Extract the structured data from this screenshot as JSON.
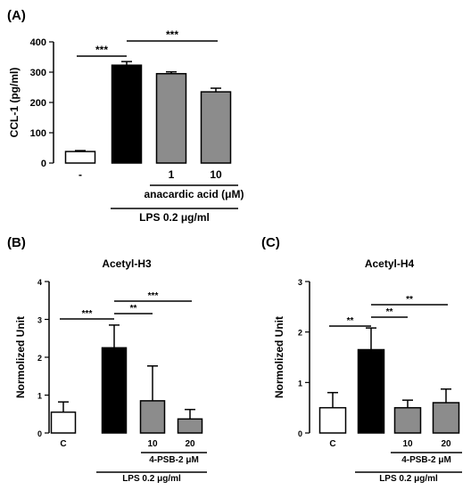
{
  "figure": {
    "panel_labels": [
      "(A)",
      "(B)",
      "(C)"
    ],
    "colors": {
      "white": "#ffffff",
      "black": "#000000",
      "gray": "#8c8c8c"
    }
  },
  "chart_data": [
    {
      "type": "bar",
      "panel": "(A)",
      "title": "",
      "ylabel": "CCL-1 (pg/ml)",
      "xlabel": "",
      "ylim": [
        0,
        400
      ],
      "yticks": [
        0,
        100,
        200,
        300,
        400
      ],
      "categories": [
        "-",
        "",
        "1",
        "10"
      ],
      "values": [
        38,
        323,
        295,
        235
      ],
      "errors": [
        3,
        12,
        6,
        12
      ],
      "bar_colors": [
        "white",
        "black",
        "gray",
        "gray"
      ],
      "group_labels": [
        {
          "text": "anacardic acid (μM)",
          "from": 2,
          "to": 3
        },
        {
          "text": "LPS 0.2 μg/ml",
          "from": 1,
          "to": 3
        }
      ],
      "significance": [
        {
          "from": 0,
          "to": 1,
          "label": "***"
        },
        {
          "from": 1,
          "to": 3,
          "label": "***"
        }
      ]
    },
    {
      "type": "bar",
      "panel": "(B)",
      "title": "Acetyl-H3",
      "ylabel": "Normolized Unit",
      "xlabel": "",
      "ylim": [
        0,
        4
      ],
      "yticks": [
        0,
        1,
        2,
        3,
        4
      ],
      "categories": [
        "C",
        "",
        "10",
        "20"
      ],
      "values": [
        0.55,
        2.25,
        0.85,
        0.37
      ],
      "errors": [
        0.27,
        0.6,
        0.92,
        0.25
      ],
      "bar_colors": [
        "white",
        "black",
        "gray",
        "gray"
      ],
      "group_labels": [
        {
          "text": "4-PSB-2 μM",
          "from": 2,
          "to": 3
        },
        {
          "text": "LPS 0.2 μg/ml",
          "from": 1,
          "to": 3
        }
      ],
      "significance": [
        {
          "from": 0,
          "to": 1,
          "label": "***"
        },
        {
          "from": 1,
          "to": 2,
          "label": "**"
        },
        {
          "from": 1,
          "to": 3,
          "label": "***"
        }
      ]
    },
    {
      "type": "bar",
      "panel": "(C)",
      "title": "Acetyl-H4",
      "ylabel": "Normolized Unit",
      "xlabel": "",
      "ylim": [
        0,
        3
      ],
      "yticks": [
        0,
        1,
        2,
        3
      ],
      "categories": [
        "C",
        "",
        "10",
        "20"
      ],
      "values": [
        0.5,
        1.65,
        0.5,
        0.6
      ],
      "errors": [
        0.3,
        0.43,
        0.15,
        0.27
      ],
      "bar_colors": [
        "white",
        "black",
        "gray",
        "gray"
      ],
      "group_labels": [
        {
          "text": "4-PSB-2 μM",
          "from": 2,
          "to": 3
        },
        {
          "text": "LPS 0.2 μg/ml",
          "from": 1,
          "to": 3
        }
      ],
      "significance": [
        {
          "from": 0,
          "to": 1,
          "label": "**"
        },
        {
          "from": 1,
          "to": 2,
          "label": "**"
        },
        {
          "from": 1,
          "to": 3,
          "label": "**"
        }
      ]
    }
  ]
}
